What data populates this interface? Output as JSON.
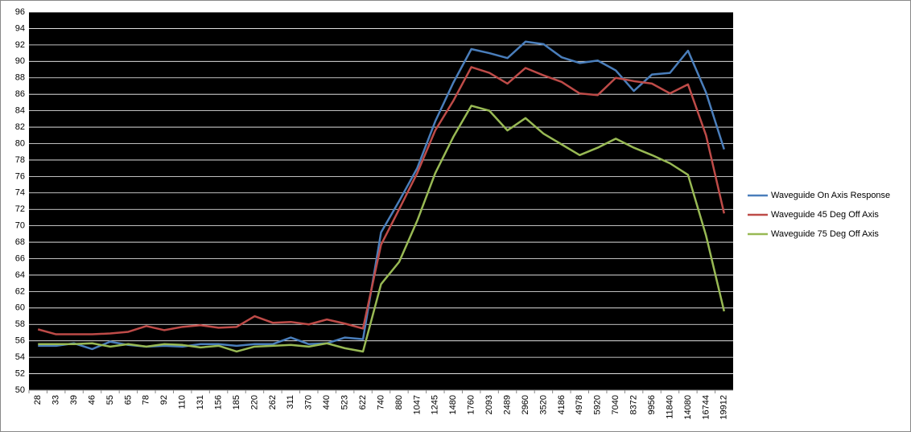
{
  "chart_data": {
    "type": "line",
    "categories": [
      "28",
      "33",
      "39",
      "46",
      "55",
      "65",
      "78",
      "92",
      "110",
      "131",
      "156",
      "185",
      "220",
      "262",
      "311",
      "370",
      "440",
      "523",
      "622",
      "740",
      "880",
      "1047",
      "1245",
      "1480",
      "1760",
      "2093",
      "2489",
      "2960",
      "3520",
      "4186",
      "4978",
      "5920",
      "7040",
      "8372",
      "9956",
      "11840",
      "14080",
      "16744",
      "19912"
    ],
    "series": [
      {
        "name": "Waveguide On Axis Response",
        "color": "#4a7ebb",
        "values": [
          55.4,
          55.4,
          55.7,
          55.0,
          55.9,
          55.5,
          55.3,
          55.4,
          55.3,
          55.6,
          55.6,
          55.4,
          55.6,
          55.6,
          56.4,
          55.6,
          55.7,
          56.4,
          56.2,
          69.2,
          73.0,
          77.0,
          82.7,
          87.4,
          91.5,
          91.0,
          90.4,
          92.4,
          92.1,
          90.5,
          89.8,
          90.1,
          88.9,
          86.4,
          88.4,
          88.6,
          91.3,
          86.2,
          79.3
        ]
      },
      {
        "name": "Waveguide 45 Deg Off Axis",
        "color": "#be4b48",
        "values": [
          57.4,
          56.8,
          56.8,
          56.8,
          56.9,
          57.1,
          57.8,
          57.3,
          57.7,
          57.9,
          57.6,
          57.7,
          59.0,
          58.2,
          58.3,
          58.0,
          58.6,
          58.1,
          57.5,
          67.7,
          72.0,
          76.4,
          81.6,
          85.2,
          89.3,
          88.6,
          87.3,
          89.2,
          88.3,
          87.5,
          86.1,
          85.9,
          88.0,
          87.6,
          87.3,
          86.1,
          87.2,
          81.0,
          71.5
        ]
      },
      {
        "name": "Waveguide 75 Deg Off Axis",
        "color": "#98b954",
        "values": [
          55.6,
          55.6,
          55.6,
          55.7,
          55.3,
          55.6,
          55.3,
          55.6,
          55.5,
          55.2,
          55.4,
          54.7,
          55.3,
          55.4,
          55.5,
          55.3,
          55.7,
          55.1,
          54.7,
          62.9,
          65.6,
          70.6,
          76.4,
          80.8,
          84.6,
          84.0,
          81.6,
          83.1,
          81.2,
          79.9,
          78.6,
          79.5,
          80.6,
          79.5,
          78.6,
          77.6,
          76.2,
          68.8,
          59.6
        ]
      }
    ],
    "ylim": [
      50,
      96
    ],
    "yticks": [
      50,
      52,
      54,
      56,
      58,
      60,
      62,
      64,
      66,
      68,
      70,
      72,
      74,
      76,
      78,
      80,
      82,
      84,
      86,
      88,
      90,
      92,
      94,
      96
    ],
    "grid": true,
    "legend": "right",
    "background": "#000000",
    "grid_color": "#ffffff"
  }
}
